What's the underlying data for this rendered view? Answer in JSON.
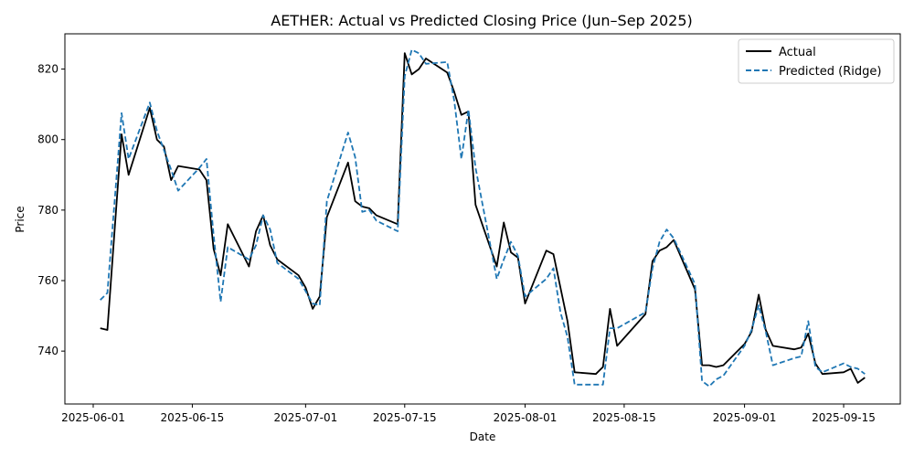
{
  "chart_data": {
    "type": "line",
    "title": "AETHER: Actual vs Predicted Closing Price (Jun–Sep 2025)",
    "xlabel": "Date",
    "ylabel": "Price",
    "x_tick_labels": [
      "2025-06-01",
      "2025-06-15",
      "2025-07-01",
      "2025-07-15",
      "2025-08-01",
      "2025-08-15",
      "2025-09-01",
      "2025-09-15"
    ],
    "y_tick_labels": [
      "740",
      "760",
      "780",
      "800",
      "820"
    ],
    "xlim": [
      "2025-05-28",
      "2025-09-23"
    ],
    "ylim": [
      725,
      830
    ],
    "grid": false,
    "legend_position": "top-right",
    "series": [
      {
        "name": "Actual",
        "color": "#000000",
        "style": "solid",
        "points": [
          [
            "2025-06-02",
            746.5
          ],
          [
            "2025-06-03",
            746.0
          ],
          [
            "2025-06-05",
            801.5
          ],
          [
            "2025-06-06",
            790.0
          ],
          [
            "2025-06-09",
            809.0
          ],
          [
            "2025-06-10",
            800.0
          ],
          [
            "2025-06-11",
            798.0
          ],
          [
            "2025-06-12",
            788.5
          ],
          [
            "2025-06-13",
            792.5
          ],
          [
            "2025-06-16",
            791.5
          ],
          [
            "2025-06-17",
            788.5
          ],
          [
            "2025-06-18",
            769.0
          ],
          [
            "2025-06-19",
            761.5
          ],
          [
            "2025-06-20",
            776.0
          ],
          [
            "2025-06-23",
            764.0
          ],
          [
            "2025-06-24",
            774.0
          ],
          [
            "2025-06-25",
            778.5
          ],
          [
            "2025-06-26",
            770.0
          ],
          [
            "2025-06-27",
            766.0
          ],
          [
            "2025-06-30",
            761.5
          ],
          [
            "2025-07-01",
            758.0
          ],
          [
            "2025-07-02",
            752.0
          ],
          [
            "2025-07-03",
            755.5
          ],
          [
            "2025-07-04",
            778.0
          ],
          [
            "2025-07-07",
            793.5
          ],
          [
            "2025-07-08",
            782.5
          ],
          [
            "2025-07-09",
            781.0
          ],
          [
            "2025-07-10",
            780.5
          ],
          [
            "2025-07-11",
            778.5
          ],
          [
            "2025-07-14",
            776.0
          ],
          [
            "2025-07-15",
            824.5
          ],
          [
            "2025-07-16",
            818.5
          ],
          [
            "2025-07-17",
            820.0
          ],
          [
            "2025-07-18",
            823.0
          ],
          [
            "2025-07-21",
            819.0
          ],
          [
            "2025-07-22",
            813.5
          ],
          [
            "2025-07-23",
            807.0
          ],
          [
            "2025-07-24",
            808.0
          ],
          [
            "2025-07-25",
            781.5
          ],
          [
            "2025-07-28",
            764.0
          ],
          [
            "2025-07-29",
            776.5
          ],
          [
            "2025-07-30",
            768.0
          ],
          [
            "2025-07-31",
            766.5
          ],
          [
            "2025-08-01",
            753.5
          ],
          [
            "2025-08-04",
            768.5
          ],
          [
            "2025-08-05",
            767.5
          ],
          [
            "2025-08-06",
            758.0
          ],
          [
            "2025-08-07",
            748.5
          ],
          [
            "2025-08-08",
            734.0
          ],
          [
            "2025-08-11",
            733.5
          ],
          [
            "2025-08-12",
            735.5
          ],
          [
            "2025-08-13",
            752.0
          ],
          [
            "2025-08-14",
            741.5
          ],
          [
            "2025-08-18",
            750.5
          ],
          [
            "2025-08-19",
            765.5
          ],
          [
            "2025-08-20",
            768.5
          ],
          [
            "2025-08-21",
            769.5
          ],
          [
            "2025-08-22",
            771.5
          ],
          [
            "2025-08-25",
            757.5
          ],
          [
            "2025-08-26",
            736.0
          ],
          [
            "2025-08-27",
            736.0
          ],
          [
            "2025-08-28",
            735.5
          ],
          [
            "2025-08-29",
            736.0
          ],
          [
            "2025-09-01",
            742.0
          ],
          [
            "2025-09-02",
            745.5
          ],
          [
            "2025-09-03",
            756.0
          ],
          [
            "2025-09-04",
            746.0
          ],
          [
            "2025-09-05",
            741.5
          ],
          [
            "2025-09-08",
            740.5
          ],
          [
            "2025-09-09",
            741.0
          ],
          [
            "2025-09-10",
            745.0
          ],
          [
            "2025-09-11",
            736.5
          ],
          [
            "2025-09-12",
            733.5
          ],
          [
            "2025-09-15",
            734.0
          ],
          [
            "2025-09-16",
            735.0
          ],
          [
            "2025-09-17",
            731.0
          ],
          [
            "2025-09-18",
            732.5
          ]
        ]
      },
      {
        "name": "Predicted (Ridge)",
        "color": "#1f77b4",
        "style": "dashed",
        "points": [
          [
            "2025-06-02",
            754.5
          ],
          [
            "2025-06-03",
            756.5
          ],
          [
            "2025-06-05",
            807.5
          ],
          [
            "2025-06-06",
            794.5
          ],
          [
            "2025-06-09",
            810.5
          ],
          [
            "2025-06-10",
            802.5
          ],
          [
            "2025-06-11",
            797.0
          ],
          [
            "2025-06-12",
            791.5
          ],
          [
            "2025-06-13",
            785.5
          ],
          [
            "2025-06-16",
            792.0
          ],
          [
            "2025-06-17",
            794.5
          ],
          [
            "2025-06-18",
            773.0
          ],
          [
            "2025-06-19",
            754.0
          ],
          [
            "2025-06-20",
            769.5
          ],
          [
            "2025-06-23",
            766.0
          ],
          [
            "2025-06-24",
            770.0
          ],
          [
            "2025-06-25",
            778.5
          ],
          [
            "2025-06-26",
            774.5
          ],
          [
            "2025-06-27",
            765.0
          ],
          [
            "2025-06-30",
            760.5
          ],
          [
            "2025-07-01",
            757.0
          ],
          [
            "2025-07-02",
            753.5
          ],
          [
            "2025-07-03",
            753.0
          ],
          [
            "2025-07-04",
            782.5
          ],
          [
            "2025-07-07",
            802.0
          ],
          [
            "2025-07-08",
            795.0
          ],
          [
            "2025-07-09",
            779.5
          ],
          [
            "2025-07-10",
            780.0
          ],
          [
            "2025-07-11",
            777.0
          ],
          [
            "2025-07-14",
            774.0
          ],
          [
            "2025-07-15",
            818.0
          ],
          [
            "2025-07-16",
            825.5
          ],
          [
            "2025-07-17",
            824.5
          ],
          [
            "2025-07-18",
            821.5
          ],
          [
            "2025-07-21",
            822.0
          ],
          [
            "2025-07-22",
            811.0
          ],
          [
            "2025-07-23",
            794.5
          ],
          [
            "2025-07-24",
            808.5
          ],
          [
            "2025-07-25",
            792.0
          ],
          [
            "2025-07-28",
            760.5
          ],
          [
            "2025-07-29",
            766.0
          ],
          [
            "2025-07-30",
            771.0
          ],
          [
            "2025-07-31",
            767.0
          ],
          [
            "2025-08-01",
            755.5
          ],
          [
            "2025-08-04",
            760.5
          ],
          [
            "2025-08-05",
            763.5
          ],
          [
            "2025-08-06",
            751.0
          ],
          [
            "2025-08-07",
            744.0
          ],
          [
            "2025-08-08",
            730.5
          ],
          [
            "2025-08-11",
            730.5
          ],
          [
            "2025-08-12",
            730.5
          ],
          [
            "2025-08-13",
            746.5
          ],
          [
            "2025-08-14",
            746.5
          ],
          [
            "2025-08-18",
            751.0
          ],
          [
            "2025-08-19",
            763.5
          ],
          [
            "2025-08-20",
            771.0
          ],
          [
            "2025-08-21",
            774.5
          ],
          [
            "2025-08-22",
            772.0
          ],
          [
            "2025-08-25",
            759.0
          ],
          [
            "2025-08-26",
            731.5
          ],
          [
            "2025-08-27",
            730.0
          ],
          [
            "2025-08-28",
            732.0
          ],
          [
            "2025-08-29",
            733.0
          ],
          [
            "2025-09-01",
            741.5
          ],
          [
            "2025-09-02",
            746.0
          ],
          [
            "2025-09-03",
            753.0
          ],
          [
            "2025-09-04",
            745.5
          ],
          [
            "2025-09-05",
            736.0
          ],
          [
            "2025-09-08",
            738.0
          ],
          [
            "2025-09-09",
            738.5
          ],
          [
            "2025-09-10",
            748.5
          ],
          [
            "2025-09-11",
            735.5
          ],
          [
            "2025-09-12",
            734.0
          ],
          [
            "2025-09-15",
            736.5
          ],
          [
            "2025-09-16",
            735.5
          ],
          [
            "2025-09-17",
            735.0
          ],
          [
            "2025-09-18",
            733.5
          ]
        ]
      }
    ]
  }
}
